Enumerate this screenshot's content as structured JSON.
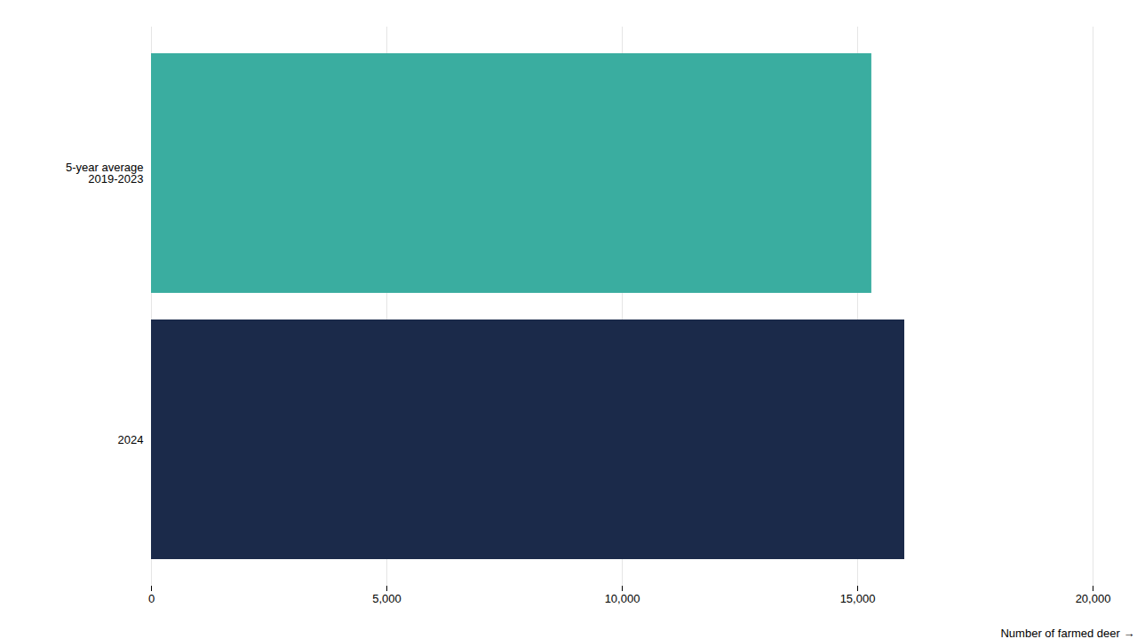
{
  "chart_data": {
    "type": "bar",
    "orientation": "horizontal",
    "categories": [
      "5-year average\n2019-2023",
      "2024"
    ],
    "values": [
      15300,
      16000
    ],
    "colors": [
      "#3aada0",
      "#1b2a4a"
    ],
    "xlabel": "Number of farmed deer",
    "xlim": [
      0,
      20000
    ],
    "xticks": [
      0,
      {
        "value": 5000,
        "label": "5,000"
      },
      {
        "value": 10000,
        "label": "10,000"
      },
      {
        "value": 15000,
        "label": "15,000"
      },
      {
        "value": 20000,
        "label": "20,000"
      }
    ],
    "grid": true
  }
}
